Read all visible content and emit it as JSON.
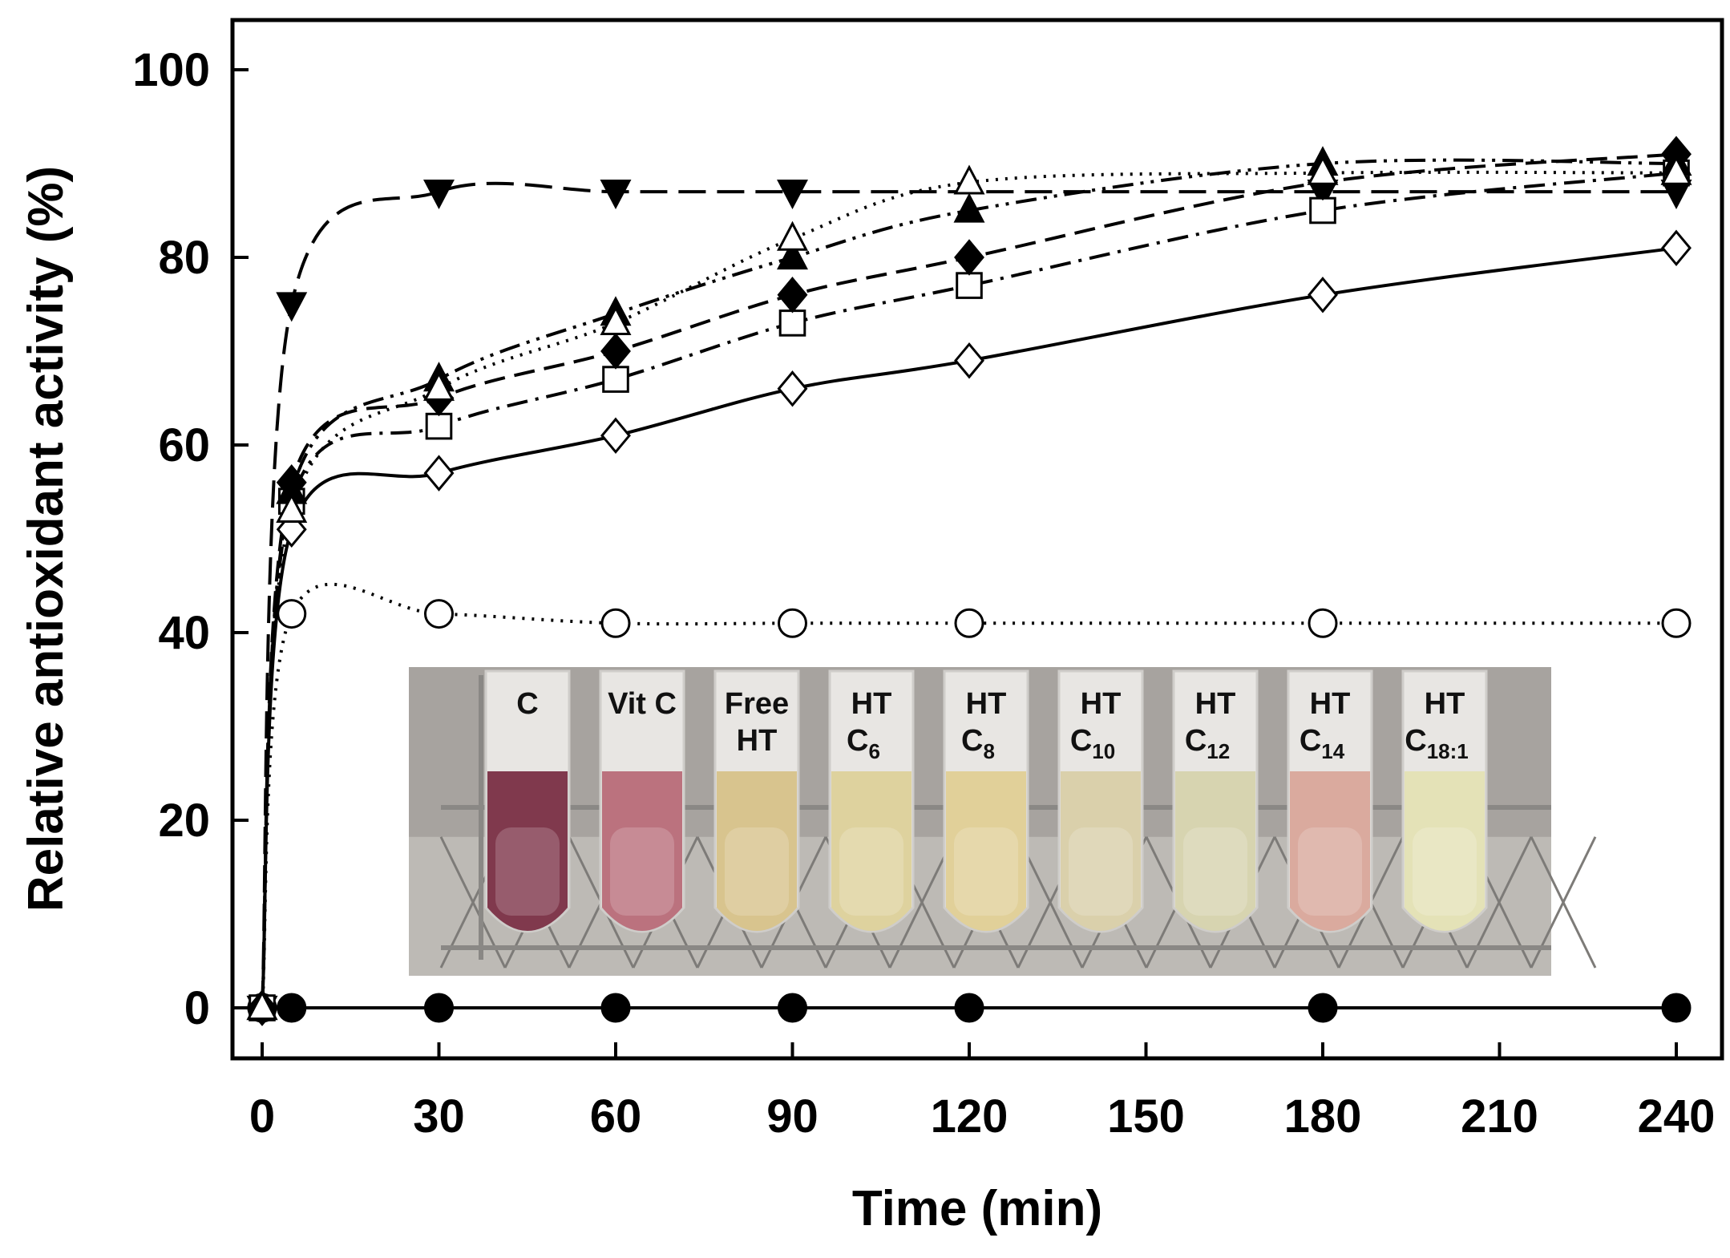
{
  "chart_data": {
    "type": "line",
    "title": "",
    "xlabel": "Time (min)",
    "ylabel": "Relative antioxidant activity (%)",
    "xlim": [
      -8,
      248
    ],
    "ylim": [
      -5,
      105
    ],
    "xticks": [
      0,
      30,
      60,
      90,
      120,
      150,
      180,
      210,
      240
    ],
    "yticks": [
      0,
      20,
      40,
      60,
      80,
      100
    ],
    "grid": false,
    "legend": "none",
    "series": [
      {
        "marker": "filled-circle",
        "line": "solid",
        "x": [
          0,
          5,
          30,
          60,
          90,
          120,
          180,
          240
        ],
        "y": [
          0,
          0,
          0,
          0,
          0,
          0,
          0,
          0
        ]
      },
      {
        "marker": "open-circle",
        "line": "dotted",
        "x": [
          0,
          5,
          30,
          60,
          90,
          120,
          180,
          240
        ],
        "y": [
          0,
          42,
          42,
          41,
          41,
          41,
          41,
          41
        ]
      },
      {
        "marker": "filled-down-triangle",
        "line": "long-dash",
        "x": [
          0,
          5,
          30,
          60,
          90,
          180,
          240
        ],
        "y": [
          0,
          75,
          87,
          87,
          87,
          87,
          87
        ]
      },
      {
        "marker": "open-diamond",
        "line": "solid",
        "x": [
          0,
          5,
          30,
          60,
          90,
          120,
          180,
          240
        ],
        "y": [
          0,
          51,
          57,
          61,
          66,
          69,
          76,
          81
        ]
      },
      {
        "marker": "open-square",
        "line": "dash-dot",
        "x": [
          0,
          5,
          30,
          60,
          90,
          120,
          180,
          240
        ],
        "y": [
          0,
          54,
          62,
          67,
          73,
          77,
          85,
          89
        ]
      },
      {
        "marker": "filled-diamond",
        "line": "dashed",
        "x": [
          0,
          5,
          30,
          60,
          90,
          120,
          180,
          240
        ],
        "y": [
          0,
          56,
          65,
          70,
          76,
          80,
          88,
          91
        ]
      },
      {
        "marker": "filled-triangle",
        "line": "dash-dot-dot",
        "x": [
          0,
          5,
          30,
          60,
          90,
          120,
          180,
          240
        ],
        "y": [
          0,
          55,
          67,
          74,
          80,
          85,
          90,
          90
        ]
      },
      {
        "marker": "open-triangle",
        "line": "dotted",
        "x": [
          0,
          5,
          30,
          60,
          90,
          120,
          180,
          240
        ],
        "y": [
          0,
          53,
          66,
          73,
          82,
          88,
          89,
          89
        ]
      }
    ]
  },
  "inset": {
    "labels": [
      {
        "main": "C",
        "sub": ""
      },
      {
        "main": "Vit C",
        "sub": ""
      },
      {
        "main": "Free",
        "main2": "HT",
        "sub": ""
      },
      {
        "main": "HT",
        "main2": "C",
        "sub": "6"
      },
      {
        "main": "HT",
        "main2": "C",
        "sub": "8"
      },
      {
        "main": "HT",
        "main2": "C",
        "sub": "10"
      },
      {
        "main": "HT",
        "main2": "C",
        "sub": "12"
      },
      {
        "main": "HT",
        "main2": "C",
        "sub": "14"
      },
      {
        "main": "HT",
        "main2": "C",
        "sub": "18:1"
      }
    ],
    "liquid_colors": [
      "#7a2f45",
      "#b86c78",
      "#d7c289",
      "#ddd19a",
      "#e0cf95",
      "#d9cfa8",
      "#d6d3ad",
      "#d9a79a",
      "#e4e2b4"
    ]
  }
}
